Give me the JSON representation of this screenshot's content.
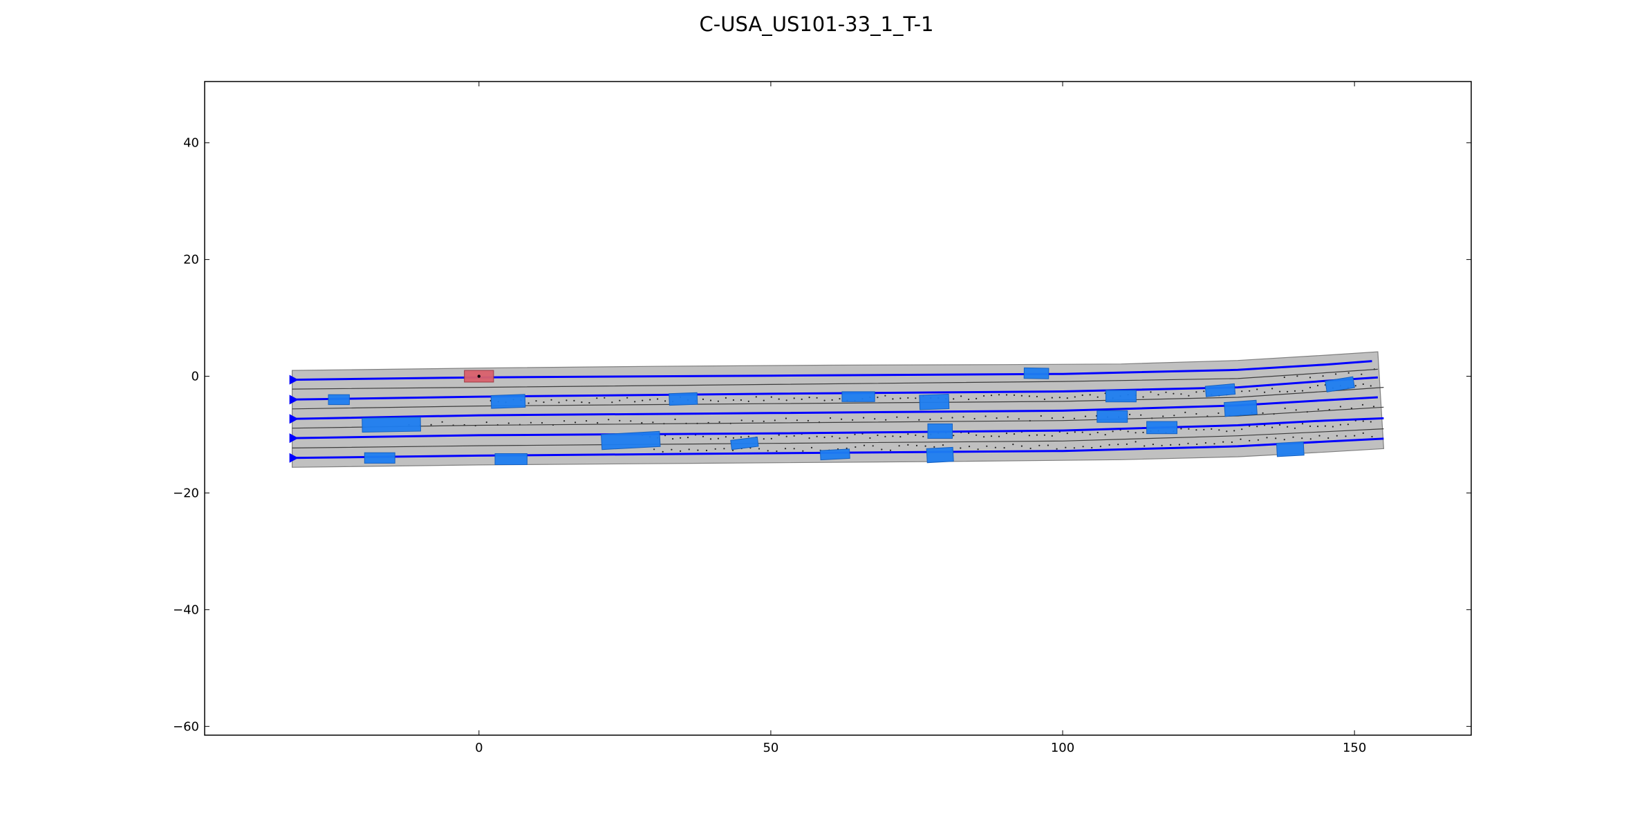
{
  "chart_data": {
    "type": "scatter",
    "title": "C-USA_US101-33_1_T-1",
    "xlabel": "",
    "ylabel": "",
    "xlim": [
      -47,
      170
    ],
    "ylim": [
      -61.5,
      50.5
    ],
    "xticks": [
      0,
      50,
      100,
      150
    ],
    "yticks": [
      40,
      20,
      0,
      -20,
      -40,
      -60
    ],
    "grid": false,
    "colors": {
      "road": "#c0c0c0",
      "road_edge": "#7f7f7f",
      "lane_divider": "#3c3c3c",
      "centerline": "#0000ff",
      "ego_vehicle": "#d9606b",
      "ego_vehicle_edge": "#9c3a44",
      "vehicle": "#1e7df0",
      "vehicle_edge": "#1560c0",
      "dots": "#222222"
    },
    "road": {
      "top_boundary": [
        [
          -32,
          1.0
        ],
        [
          -15,
          1.2
        ],
        [
          0,
          1.4
        ],
        [
          30,
          1.7
        ],
        [
          60,
          1.9
        ],
        [
          90,
          2.0
        ],
        [
          110,
          2.1
        ],
        [
          130,
          2.7
        ],
        [
          145,
          3.6
        ],
        [
          154,
          4.2
        ]
      ],
      "bottom_boundary": [
        [
          -32,
          -15.6
        ],
        [
          0,
          -15.2
        ],
        [
          40,
          -14.9
        ],
        [
          80,
          -14.6
        ],
        [
          110,
          -14.3
        ],
        [
          130,
          -13.8
        ],
        [
          145,
          -13.0
        ],
        [
          155,
          -12.4
        ]
      ]
    },
    "lane_dividers": [
      [
        [
          -32,
          -2.2
        ],
        [
          0,
          -1.9
        ],
        [
          50,
          -1.4
        ],
        [
          100,
          -0.9
        ],
        [
          130,
          -0.4
        ],
        [
          145,
          0.6
        ],
        [
          154,
          1.2
        ]
      ],
      [
        [
          -32,
          -5.6
        ],
        [
          0,
          -5.1
        ],
        [
          50,
          -4.7
        ],
        [
          100,
          -4.3
        ],
        [
          130,
          -3.6
        ],
        [
          145,
          -2.6
        ],
        [
          155,
          -1.9
        ]
      ],
      [
        [
          -32,
          -8.9
        ],
        [
          0,
          -8.4
        ],
        [
          50,
          -8.0
        ],
        [
          100,
          -7.6
        ],
        [
          130,
          -6.8
        ],
        [
          145,
          -5.9
        ],
        [
          155,
          -5.3
        ]
      ],
      [
        [
          -32,
          -12.3
        ],
        [
          0,
          -11.9
        ],
        [
          50,
          -11.5
        ],
        [
          100,
          -11.1
        ],
        [
          130,
          -10.2
        ],
        [
          145,
          -9.5
        ],
        [
          155,
          -9.0
        ]
      ]
    ],
    "centerlines": [
      [
        [
          -32,
          -0.6
        ],
        [
          0,
          -0.2
        ],
        [
          50,
          0.1
        ],
        [
          100,
          0.4
        ],
        [
          130,
          1.1
        ],
        [
          145,
          2.0
        ],
        [
          153,
          2.6
        ]
      ],
      [
        [
          -32,
          -4.0
        ],
        [
          0,
          -3.5
        ],
        [
          50,
          -3.0
        ],
        [
          100,
          -2.6
        ],
        [
          130,
          -1.9
        ],
        [
          145,
          -0.8
        ],
        [
          154,
          -0.2
        ]
      ],
      [
        [
          -32,
          -7.3
        ],
        [
          0,
          -6.7
        ],
        [
          50,
          -6.3
        ],
        [
          100,
          -5.9
        ],
        [
          130,
          -5.0
        ],
        [
          145,
          -4.1
        ],
        [
          154,
          -3.6
        ]
      ],
      [
        [
          -32,
          -10.6
        ],
        [
          0,
          -10.1
        ],
        [
          50,
          -9.8
        ],
        [
          100,
          -9.3
        ],
        [
          130,
          -8.4
        ],
        [
          145,
          -7.6
        ],
        [
          155,
          -7.2
        ]
      ],
      [
        [
          -32,
          -14.0
        ],
        [
          0,
          -13.6
        ],
        [
          50,
          -13.2
        ],
        [
          100,
          -12.8
        ],
        [
          130,
          -12.0
        ],
        [
          145,
          -11.2
        ],
        [
          155,
          -10.7
        ]
      ]
    ],
    "ego_vehicle": {
      "x": 0,
      "y": 0,
      "length": 5.0,
      "width": 2.0,
      "angle": 0
    },
    "vehicles": [
      {
        "x": 95.5,
        "y": 0.5,
        "length": 4.2,
        "width": 1.8,
        "angle": -1
      },
      {
        "x": 147.5,
        "y": -1.4,
        "length": 4.8,
        "width": 1.9,
        "angle": 9
      },
      {
        "x": -24,
        "y": -4.0,
        "length": 3.6,
        "width": 1.7,
        "angle": 0
      },
      {
        "x": 5,
        "y": -4.3,
        "length": 5.8,
        "width": 2.2,
        "angle": 2
      },
      {
        "x": 35,
        "y": -3.9,
        "length": 4.8,
        "width": 2.0,
        "angle": 2
      },
      {
        "x": 65,
        "y": -3.5,
        "length": 5.6,
        "width": 1.7,
        "angle": 0
      },
      {
        "x": 78,
        "y": -4.4,
        "length": 5.0,
        "width": 2.5,
        "angle": 2
      },
      {
        "x": 110,
        "y": -3.4,
        "length": 5.2,
        "width": 2.0,
        "angle": 0
      },
      {
        "x": 127,
        "y": -2.4,
        "length": 5.0,
        "width": 1.8,
        "angle": 5
      },
      {
        "x": 130.5,
        "y": -5.5,
        "length": 5.5,
        "width": 2.4,
        "angle": 4
      },
      {
        "x": -15,
        "y": -8.3,
        "length": 10.0,
        "width": 2.4,
        "angle": 1
      },
      {
        "x": 108.5,
        "y": -6.9,
        "length": 5.2,
        "width": 2.0,
        "angle": 0
      },
      {
        "x": 117,
        "y": -8.8,
        "length": 5.2,
        "width": 2.1,
        "angle": 0
      },
      {
        "x": 26,
        "y": -11.0,
        "length": 10.0,
        "width": 2.6,
        "angle": 3
      },
      {
        "x": 79,
        "y": -9.4,
        "length": 4.2,
        "width": 2.5,
        "angle": 0
      },
      {
        "x": 45.5,
        "y": -11.5,
        "length": 4.6,
        "width": 1.6,
        "angle": 7
      },
      {
        "x": -17,
        "y": -14.0,
        "length": 5.2,
        "width": 1.8,
        "angle": 0
      },
      {
        "x": 5.5,
        "y": -14.2,
        "length": 5.5,
        "width": 1.9,
        "angle": 0
      },
      {
        "x": 61,
        "y": -13.4,
        "length": 5.0,
        "width": 1.6,
        "angle": 3
      },
      {
        "x": 79,
        "y": -13.5,
        "length": 4.5,
        "width": 2.4,
        "angle": 3
      },
      {
        "x": 139,
        "y": -12.5,
        "length": 4.6,
        "width": 2.3,
        "angle": 3
      }
    ]
  }
}
